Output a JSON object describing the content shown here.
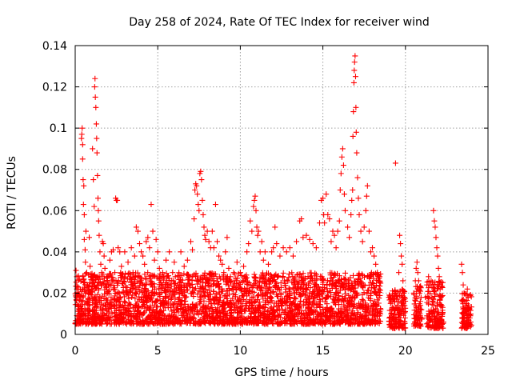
{
  "chart_data": {
    "type": "scatter",
    "title": "Day 258 of 2024, Rate Of TEC Index for receiver wind",
    "xlabel": "GPS time / hours",
    "ylabel": "ROTI / TECUs",
    "xlim": [
      0,
      25
    ],
    "ylim": [
      0,
      0.14
    ],
    "xticks": [
      "0",
      "5",
      "10",
      "15",
      "20",
      "25"
    ],
    "yticks": [
      "0",
      "0.02",
      "0.04",
      "0.06",
      "0.08",
      "0.1",
      "0.12",
      "0.14"
    ],
    "xtick_values": [
      0,
      5,
      10,
      15,
      20,
      25
    ],
    "ytick_values": [
      0,
      0.02,
      0.04,
      0.06,
      0.08,
      0.1,
      0.12,
      0.14
    ],
    "grid": true,
    "marker": "plus",
    "color": "#ff0000",
    "series": [
      {
        "points": [
          [
            0.05,
            0.031
          ],
          [
            0.1,
            0.028
          ],
          [
            0.1,
            0.022
          ],
          [
            0.15,
            0.018
          ],
          [
            0.2,
            0.014
          ],
          [
            0.25,
            0.012
          ],
          [
            0.3,
            0.01
          ],
          [
            0.35,
            0.016
          ],
          [
            0.38,
            0.095
          ],
          [
            0.4,
            0.097
          ],
          [
            0.42,
            0.1
          ],
          [
            0.45,
            0.092
          ],
          [
            0.45,
            0.085
          ],
          [
            0.48,
            0.075
          ],
          [
            0.5,
            0.063
          ],
          [
            0.52,
            0.072
          ],
          [
            0.55,
            0.058
          ],
          [
            0.55,
            0.046
          ],
          [
            0.6,
            0.041
          ],
          [
            0.62,
            0.035
          ],
          [
            0.65,
            0.05
          ],
          [
            0.7,
            0.03
          ],
          [
            0.75,
            0.024
          ],
          [
            0.8,
            0.02
          ],
          [
            0.85,
            0.047
          ],
          [
            0.9,
            0.033
          ],
          [
            0.95,
            0.028
          ],
          [
            1.0,
            0.022
          ],
          [
            1.05,
            0.09
          ],
          [
            1.1,
            0.075
          ],
          [
            1.15,
            0.062
          ],
          [
            1.18,
            0.12
          ],
          [
            1.2,
            0.124
          ],
          [
            1.22,
            0.115
          ],
          [
            1.25,
            0.11
          ],
          [
            1.28,
            0.102
          ],
          [
            1.3,
            0.095
          ],
          [
            1.32,
            0.088
          ],
          [
            1.35,
            0.077
          ],
          [
            1.38,
            0.066
          ],
          [
            1.4,
            0.06
          ],
          [
            1.42,
            0.055
          ],
          [
            1.45,
            0.048
          ],
          [
            1.5,
            0.04
          ],
          [
            1.55,
            0.034
          ],
          [
            1.6,
            0.03
          ],
          [
            1.65,
            0.045
          ],
          [
            1.7,
            0.044
          ],
          [
            1.75,
            0.038
          ],
          [
            1.8,
            0.032
          ],
          [
            1.9,
            0.028
          ],
          [
            2.0,
            0.024
          ],
          [
            2.1,
            0.036
          ],
          [
            2.2,
            0.04
          ],
          [
            2.3,
            0.041
          ],
          [
            2.4,
            0.03
          ],
          [
            2.45,
            0.066
          ],
          [
            2.5,
            0.065
          ],
          [
            2.55,
            0.065
          ],
          [
            2.6,
            0.042
          ],
          [
            2.7,
            0.04
          ],
          [
            2.8,
            0.033
          ],
          [
            2.9,
            0.028
          ],
          [
            3.0,
            0.04
          ],
          [
            3.2,
            0.035
          ],
          [
            3.4,
            0.042
          ],
          [
            3.5,
            0.03
          ],
          [
            3.6,
            0.038
          ],
          [
            3.7,
            0.052
          ],
          [
            3.8,
            0.05
          ],
          [
            3.9,
            0.044
          ],
          [
            4.0,
            0.04
          ],
          [
            4.1,
            0.038
          ],
          [
            4.2,
            0.034
          ],
          [
            4.3,
            0.045
          ],
          [
            4.4,
            0.047
          ],
          [
            4.5,
            0.042
          ],
          [
            4.6,
            0.063
          ],
          [
            4.7,
            0.05
          ],
          [
            4.8,
            0.036
          ],
          [
            4.9,
            0.046
          ],
          [
            5.0,
            0.04
          ],
          [
            5.1,
            0.032
          ],
          [
            5.3,
            0.03
          ],
          [
            5.5,
            0.036
          ],
          [
            5.7,
            0.04
          ],
          [
            5.9,
            0.03
          ],
          [
            6.0,
            0.035
          ],
          [
            6.2,
            0.028
          ],
          [
            6.4,
            0.04
          ],
          [
            6.6,
            0.033
          ],
          [
            6.8,
            0.036
          ],
          [
            7.0,
            0.045
          ],
          [
            7.1,
            0.041
          ],
          [
            7.2,
            0.056
          ],
          [
            7.25,
            0.07
          ],
          [
            7.3,
            0.073
          ],
          [
            7.35,
            0.072
          ],
          [
            7.4,
            0.068
          ],
          [
            7.45,
            0.063
          ],
          [
            7.5,
            0.06
          ],
          [
            7.55,
            0.078
          ],
          [
            7.6,
            0.079
          ],
          [
            7.65,
            0.075
          ],
          [
            7.7,
            0.065
          ],
          [
            7.75,
            0.058
          ],
          [
            7.8,
            0.052
          ],
          [
            7.85,
            0.048
          ],
          [
            7.9,
            0.046
          ],
          [
            8.0,
            0.05
          ],
          [
            8.1,
            0.045
          ],
          [
            8.2,
            0.042
          ],
          [
            8.3,
            0.05
          ],
          [
            8.4,
            0.042
          ],
          [
            8.5,
            0.063
          ],
          [
            8.6,
            0.045
          ],
          [
            8.7,
            0.038
          ],
          [
            8.8,
            0.036
          ],
          [
            8.9,
            0.034
          ],
          [
            9.0,
            0.03
          ],
          [
            9.1,
            0.04
          ],
          [
            9.2,
            0.047
          ],
          [
            9.3,
            0.032
          ],
          [
            9.4,
            0.028
          ],
          [
            9.6,
            0.03
          ],
          [
            9.8,
            0.035
          ],
          [
            10.0,
            0.03
          ],
          [
            10.2,
            0.033
          ],
          [
            10.4,
            0.04
          ],
          [
            10.5,
            0.044
          ],
          [
            10.6,
            0.055
          ],
          [
            10.7,
            0.05
          ],
          [
            10.8,
            0.062
          ],
          [
            10.85,
            0.065
          ],
          [
            10.9,
            0.067
          ],
          [
            10.95,
            0.06
          ],
          [
            11.0,
            0.052
          ],
          [
            11.05,
            0.048
          ],
          [
            11.1,
            0.05
          ],
          [
            11.2,
            0.04
          ],
          [
            11.3,
            0.045
          ],
          [
            11.4,
            0.036
          ],
          [
            11.5,
            0.04
          ],
          [
            11.7,
            0.034
          ],
          [
            11.9,
            0.04
          ],
          [
            12.0,
            0.042
          ],
          [
            12.1,
            0.052
          ],
          [
            12.2,
            0.044
          ],
          [
            12.4,
            0.038
          ],
          [
            12.6,
            0.042
          ],
          [
            12.8,
            0.04
          ],
          [
            13.0,
            0.042
          ],
          [
            13.2,
            0.038
          ],
          [
            13.4,
            0.045
          ],
          [
            13.6,
            0.055
          ],
          [
            13.7,
            0.056
          ],
          [
            13.8,
            0.047
          ],
          [
            14.0,
            0.048
          ],
          [
            14.2,
            0.046
          ],
          [
            14.4,
            0.044
          ],
          [
            14.6,
            0.042
          ],
          [
            14.8,
            0.054
          ],
          [
            14.9,
            0.065
          ],
          [
            15.0,
            0.066
          ],
          [
            15.05,
            0.058
          ],
          [
            15.1,
            0.054
          ],
          [
            15.2,
            0.068
          ],
          [
            15.3,
            0.058
          ],
          [
            15.4,
            0.056
          ],
          [
            15.5,
            0.045
          ],
          [
            15.6,
            0.05
          ],
          [
            15.7,
            0.048
          ],
          [
            15.8,
            0.042
          ],
          [
            15.9,
            0.05
          ],
          [
            16.0,
            0.055
          ],
          [
            16.05,
            0.07
          ],
          [
            16.1,
            0.078
          ],
          [
            16.15,
            0.086
          ],
          [
            16.2,
            0.09
          ],
          [
            16.25,
            0.082
          ],
          [
            16.3,
            0.068
          ],
          [
            16.35,
            0.06
          ],
          [
            16.5,
            0.052
          ],
          [
            16.6,
            0.047
          ],
          [
            16.7,
            0.058
          ],
          [
            16.75,
            0.065
          ],
          [
            16.8,
            0.07
          ],
          [
            16.82,
            0.096
          ],
          [
            16.85,
            0.108
          ],
          [
            16.88,
            0.122
          ],
          [
            16.9,
            0.128
          ],
          [
            16.92,
            0.132
          ],
          [
            16.95,
            0.135
          ],
          [
            16.98,
            0.125
          ],
          [
            17.0,
            0.11
          ],
          [
            17.02,
            0.098
          ],
          [
            17.05,
            0.088
          ],
          [
            17.1,
            0.076
          ],
          [
            17.15,
            0.066
          ],
          [
            17.2,
            0.058
          ],
          [
            17.3,
            0.05
          ],
          [
            17.4,
            0.045
          ],
          [
            17.5,
            0.052
          ],
          [
            17.6,
            0.06
          ],
          [
            17.65,
            0.067
          ],
          [
            17.7,
            0.072
          ],
          [
            17.8,
            0.05
          ],
          [
            17.9,
            0.04
          ],
          [
            18.0,
            0.042
          ],
          [
            18.1,
            0.038
          ],
          [
            18.2,
            0.034
          ],
          [
            18.3,
            0.03
          ],
          [
            18.35,
            0.026
          ],
          [
            18.4,
            0.022
          ],
          [
            18.5,
            0.012
          ],
          [
            19.0,
            0.018
          ],
          [
            19.1,
            0.015
          ],
          [
            19.2,
            0.013
          ],
          [
            19.3,
            0.01
          ],
          [
            19.4,
            0.083
          ],
          [
            19.5,
            0.014
          ],
          [
            19.6,
            0.03
          ],
          [
            19.65,
            0.048
          ],
          [
            19.7,
            0.044
          ],
          [
            19.75,
            0.038
          ],
          [
            19.8,
            0.034
          ],
          [
            19.85,
            0.026
          ],
          [
            19.9,
            0.02
          ],
          [
            19.95,
            0.014
          ],
          [
            19.98,
            0.008
          ],
          [
            20.5,
            0.02
          ],
          [
            20.6,
            0.026
          ],
          [
            20.65,
            0.032
          ],
          [
            20.7,
            0.035
          ],
          [
            20.75,
            0.03
          ],
          [
            20.8,
            0.026
          ],
          [
            20.85,
            0.02
          ],
          [
            20.9,
            0.016
          ],
          [
            20.95,
            0.012
          ],
          [
            21.0,
            0.008
          ],
          [
            21.2,
            0.018
          ],
          [
            21.3,
            0.024
          ],
          [
            21.4,
            0.028
          ],
          [
            21.5,
            0.024
          ],
          [
            21.6,
            0.018
          ],
          [
            21.7,
            0.06
          ],
          [
            21.75,
            0.055
          ],
          [
            21.8,
            0.052
          ],
          [
            21.85,
            0.047
          ],
          [
            21.9,
            0.042
          ],
          [
            21.95,
            0.038
          ],
          [
            22.0,
            0.032
          ],
          [
            22.05,
            0.028
          ],
          [
            22.1,
            0.022
          ],
          [
            22.15,
            0.018
          ],
          [
            22.2,
            0.014
          ],
          [
            22.25,
            0.01
          ],
          [
            22.3,
            0.006
          ],
          [
            23.4,
            0.034
          ],
          [
            23.45,
            0.03
          ],
          [
            23.5,
            0.024
          ],
          [
            23.55,
            0.02
          ],
          [
            23.6,
            0.016
          ],
          [
            23.65,
            0.014
          ],
          [
            23.7,
            0.012
          ],
          [
            23.75,
            0.022
          ],
          [
            23.8,
            0.018
          ],
          [
            23.85,
            0.012
          ],
          [
            23.9,
            0.008
          ],
          [
            23.95,
            0.006
          ]
        ]
      }
    ],
    "dense_bands": [
      {
        "x0": 0.0,
        "x1": 18.5,
        "ymin": 0.005,
        "ymax": 0.03,
        "note": "dense background cloud"
      },
      {
        "x0": 19.0,
        "x1": 20.0,
        "ymin": 0.003,
        "ymax": 0.022
      },
      {
        "x0": 20.5,
        "x1": 21.0,
        "ymin": 0.004,
        "ymax": 0.024
      },
      {
        "x0": 21.3,
        "x1": 22.3,
        "ymin": 0.003,
        "ymax": 0.026
      },
      {
        "x0": 23.4,
        "x1": 24.0,
        "ymin": 0.003,
        "ymax": 0.02
      }
    ]
  }
}
